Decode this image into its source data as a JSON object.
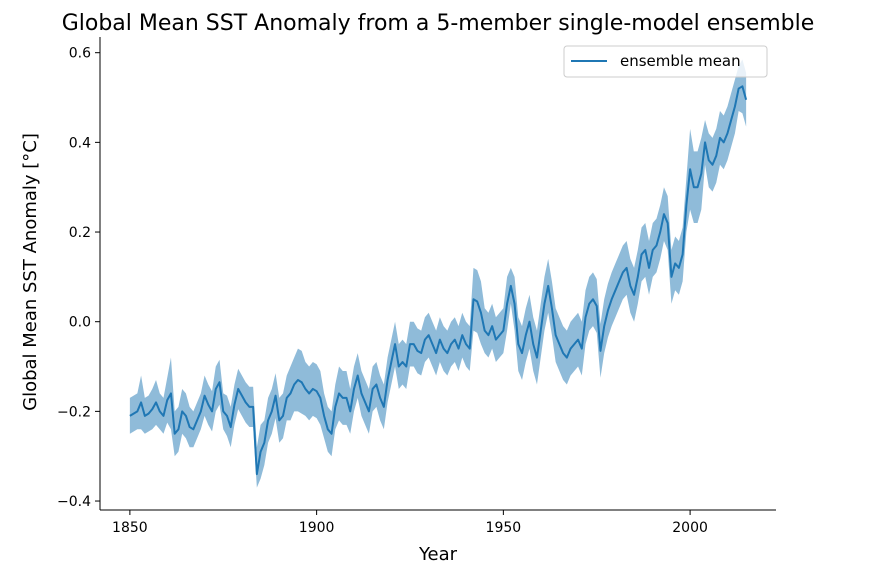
{
  "chart_data": {
    "type": "line",
    "title": "Global Mean SST Anomaly from a 5-member single-model ensemble",
    "xlabel": "Year",
    "ylabel": "Global Mean SST Anomaly [°C]",
    "xlim": [
      1842,
      2023
    ],
    "ylim": [
      -0.42,
      0.635
    ],
    "xticks": [
      1850,
      1900,
      1950,
      2000
    ],
    "xtick_labels": [
      "1850",
      "1900",
      "1950",
      "2000"
    ],
    "yticks": [
      -0.4,
      -0.2,
      0.0,
      0.2,
      0.4,
      0.6
    ],
    "ytick_labels": [
      "−0.4",
      "−0.2",
      "0.0",
      "0.2",
      "0.4",
      "0.6"
    ],
    "grid": false,
    "legend": {
      "placement": "top-right",
      "entries": [
        "ensemble mean"
      ]
    },
    "colors": {
      "line": "#1f77b4",
      "band": "#1f77b4"
    },
    "series": [
      {
        "name": "ensemble mean",
        "x_start": 1850,
        "x_step": 1,
        "values": [
          -0.21,
          -0.205,
          -0.2,
          -0.18,
          -0.21,
          -0.205,
          -0.195,
          -0.18,
          -0.2,
          -0.21,
          -0.175,
          -0.16,
          -0.25,
          -0.24,
          -0.2,
          -0.21,
          -0.235,
          -0.24,
          -0.22,
          -0.2,
          -0.165,
          -0.185,
          -0.2,
          -0.15,
          -0.135,
          -0.2,
          -0.21,
          -0.235,
          -0.185,
          -0.15,
          -0.165,
          -0.18,
          -0.19,
          -0.19,
          -0.34,
          -0.29,
          -0.27,
          -0.22,
          -0.2,
          -0.165,
          -0.22,
          -0.21,
          -0.17,
          -0.16,
          -0.14,
          -0.13,
          -0.135,
          -0.15,
          -0.16,
          -0.15,
          -0.155,
          -0.17,
          -0.21,
          -0.24,
          -0.25,
          -0.19,
          -0.16,
          -0.17,
          -0.17,
          -0.2,
          -0.15,
          -0.12,
          -0.16,
          -0.18,
          -0.2,
          -0.15,
          -0.14,
          -0.17,
          -0.19,
          -0.13,
          -0.09,
          -0.05,
          -0.1,
          -0.09,
          -0.1,
          -0.05,
          -0.05,
          -0.065,
          -0.07,
          -0.04,
          -0.03,
          -0.05,
          -0.07,
          -0.04,
          -0.06,
          -0.07,
          -0.05,
          -0.04,
          -0.06,
          -0.03,
          -0.05,
          -0.06,
          0.05,
          0.045,
          0.02,
          -0.02,
          -0.03,
          -0.01,
          -0.04,
          -0.03,
          -0.02,
          0.04,
          0.08,
          0.04,
          -0.05,
          -0.07,
          -0.03,
          0.0,
          -0.05,
          -0.08,
          -0.02,
          0.04,
          0.08,
          0.03,
          -0.03,
          -0.05,
          -0.07,
          -0.08,
          -0.06,
          -0.05,
          -0.04,
          -0.06,
          0.01,
          0.04,
          0.05,
          0.035,
          -0.065,
          -0.01,
          0.025,
          0.05,
          0.07,
          0.09,
          0.11,
          0.12,
          0.08,
          0.06,
          0.1,
          0.15,
          0.16,
          0.12,
          0.16,
          0.17,
          0.2,
          0.24,
          0.22,
          0.1,
          0.13,
          0.12,
          0.15,
          0.26,
          0.34,
          0.3,
          0.3,
          0.33,
          0.4,
          0.36,
          0.35,
          0.37,
          0.41,
          0.4,
          0.42,
          0.45,
          0.48,
          0.52,
          0.525,
          0.495
        ]
      }
    ],
    "band": {
      "x_start": 1850,
      "x_step": 1,
      "upper": [
        -0.17,
        -0.165,
        -0.16,
        -0.12,
        -0.17,
        -0.165,
        -0.15,
        -0.13,
        -0.16,
        -0.17,
        -0.125,
        -0.08,
        -0.2,
        -0.19,
        -0.15,
        -0.16,
        -0.19,
        -0.2,
        -0.18,
        -0.16,
        -0.12,
        -0.14,
        -0.155,
        -0.1,
        -0.085,
        -0.16,
        -0.165,
        -0.19,
        -0.14,
        -0.105,
        -0.12,
        -0.135,
        -0.145,
        -0.145,
        -0.28,
        -0.23,
        -0.22,
        -0.17,
        -0.15,
        -0.115,
        -0.17,
        -0.16,
        -0.12,
        -0.1,
        -0.08,
        -0.06,
        -0.065,
        -0.09,
        -0.1,
        -0.09,
        -0.095,
        -0.11,
        -0.16,
        -0.19,
        -0.2,
        -0.14,
        -0.1,
        -0.11,
        -0.11,
        -0.15,
        -0.1,
        -0.07,
        -0.11,
        -0.13,
        -0.15,
        -0.1,
        -0.09,
        -0.12,
        -0.14,
        -0.08,
        -0.04,
        -0.0,
        -0.05,
        -0.04,
        -0.05,
        -0.0,
        0.0,
        -0.015,
        -0.02,
        0.01,
        0.02,
        0.0,
        -0.02,
        0.01,
        -0.01,
        -0.02,
        0.0,
        0.01,
        -0.01,
        0.02,
        0.0,
        -0.01,
        0.12,
        0.115,
        0.09,
        0.03,
        0.02,
        0.04,
        0.01,
        0.02,
        0.03,
        0.1,
        0.12,
        0.1,
        0.01,
        -0.01,
        0.03,
        0.06,
        0.01,
        -0.02,
        0.04,
        0.1,
        0.14,
        0.09,
        0.03,
        0.01,
        -0.01,
        -0.02,
        0.0,
        0.01,
        0.02,
        0.0,
        0.07,
        0.1,
        0.11,
        0.095,
        -0.005,
        0.05,
        0.085,
        0.11,
        0.13,
        0.15,
        0.17,
        0.18,
        0.14,
        0.12,
        0.16,
        0.21,
        0.22,
        0.18,
        0.22,
        0.23,
        0.26,
        0.3,
        0.28,
        0.16,
        0.19,
        0.18,
        0.21,
        0.32,
        0.43,
        0.38,
        0.38,
        0.41,
        0.45,
        0.42,
        0.41,
        0.43,
        0.47,
        0.46,
        0.48,
        0.51,
        0.54,
        0.57,
        0.585,
        0.555
      ],
      "lower": [
        -0.25,
        -0.245,
        -0.24,
        -0.24,
        -0.25,
        -0.245,
        -0.24,
        -0.23,
        -0.24,
        -0.25,
        -0.225,
        -0.24,
        -0.3,
        -0.29,
        -0.25,
        -0.26,
        -0.28,
        -0.28,
        -0.26,
        -0.24,
        -0.21,
        -0.23,
        -0.245,
        -0.2,
        -0.185,
        -0.24,
        -0.255,
        -0.28,
        -0.23,
        -0.195,
        -0.21,
        -0.225,
        -0.235,
        -0.235,
        -0.37,
        -0.35,
        -0.32,
        -0.27,
        -0.25,
        -0.215,
        -0.27,
        -0.26,
        -0.22,
        -0.22,
        -0.2,
        -0.2,
        -0.205,
        -0.21,
        -0.22,
        -0.21,
        -0.215,
        -0.23,
        -0.26,
        -0.29,
        -0.3,
        -0.24,
        -0.22,
        -0.23,
        -0.23,
        -0.25,
        -0.2,
        -0.17,
        -0.21,
        -0.23,
        -0.25,
        -0.2,
        -0.19,
        -0.22,
        -0.24,
        -0.18,
        -0.14,
        -0.1,
        -0.15,
        -0.14,
        -0.15,
        -0.1,
        -0.1,
        -0.115,
        -0.12,
        -0.09,
        -0.08,
        -0.1,
        -0.12,
        -0.09,
        -0.11,
        -0.12,
        -0.1,
        -0.09,
        -0.11,
        -0.08,
        -0.1,
        -0.11,
        -0.02,
        -0.025,
        -0.05,
        -0.07,
        -0.08,
        -0.06,
        -0.09,
        -0.08,
        -0.07,
        -0.02,
        0.04,
        -0.02,
        -0.11,
        -0.13,
        -0.09,
        -0.06,
        -0.11,
        -0.14,
        -0.08,
        -0.02,
        0.02,
        -0.03,
        -0.09,
        -0.11,
        -0.13,
        -0.14,
        -0.12,
        -0.11,
        -0.1,
        -0.12,
        -0.05,
        -0.02,
        -0.01,
        -0.025,
        -0.125,
        -0.07,
        -0.035,
        -0.01,
        0.01,
        0.03,
        0.05,
        0.06,
        0.02,
        0.0,
        0.04,
        0.09,
        0.1,
        0.06,
        0.1,
        0.11,
        0.14,
        0.18,
        0.16,
        0.04,
        0.07,
        0.06,
        0.09,
        0.2,
        0.25,
        0.22,
        0.22,
        0.25,
        0.35,
        0.3,
        0.29,
        0.31,
        0.35,
        0.34,
        0.36,
        0.39,
        0.42,
        0.47,
        0.465,
        0.435
      ]
    }
  }
}
